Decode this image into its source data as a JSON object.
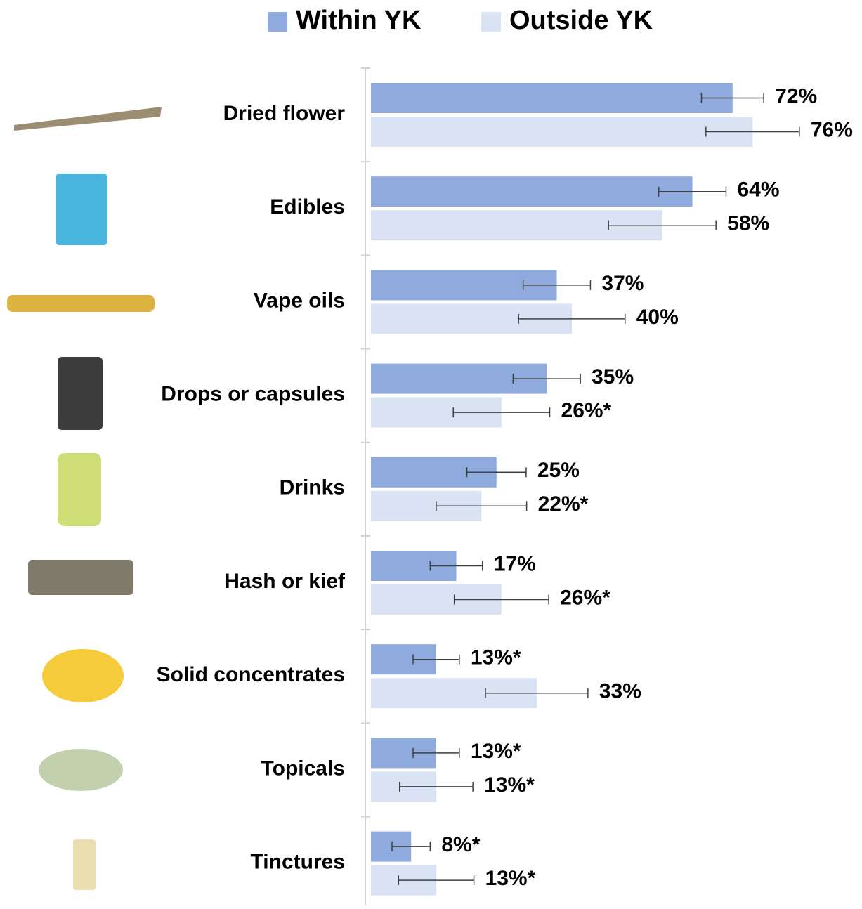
{
  "chart_data": {
    "type": "bar",
    "orientation": "horizontal",
    "categories": [
      "Dried flower",
      "Edibles",
      "Vape oils",
      "Drops or capsules",
      "Drinks",
      "Hash or kief",
      "Solid concentrates",
      "Topicals",
      "Tinctures"
    ],
    "series": [
      {
        "name": "Within YK",
        "color": "#8faadc",
        "values": [
          72,
          64,
          37,
          35,
          25,
          17,
          13,
          13,
          8
        ],
        "value_labels": [
          "72%",
          "64%",
          "37%",
          "35%",
          "25%",
          "17%",
          "13%*",
          "13%*",
          "8%*"
        ],
        "errors": [
          6.2,
          6.7,
          6.7,
          6.7,
          5.9,
          5.2,
          4.6,
          4.6,
          3.8
        ]
      },
      {
        "name": "Outside YK",
        "color": "#dae3f3",
        "values": [
          76,
          58,
          40,
          26,
          22,
          26,
          33,
          13,
          13
        ],
        "value_labels": [
          "76%",
          "58%",
          "40%",
          "26%*",
          "22%*",
          "26%*",
          "33%",
          "13%*",
          "13%*"
        ],
        "errors": [
          9.3,
          10.7,
          10.6,
          9.6,
          9.0,
          9.4,
          10.2,
          7.3,
          7.5
        ]
      }
    ],
    "xlim": [
      0,
      97
    ],
    "legend": "top"
  }
}
